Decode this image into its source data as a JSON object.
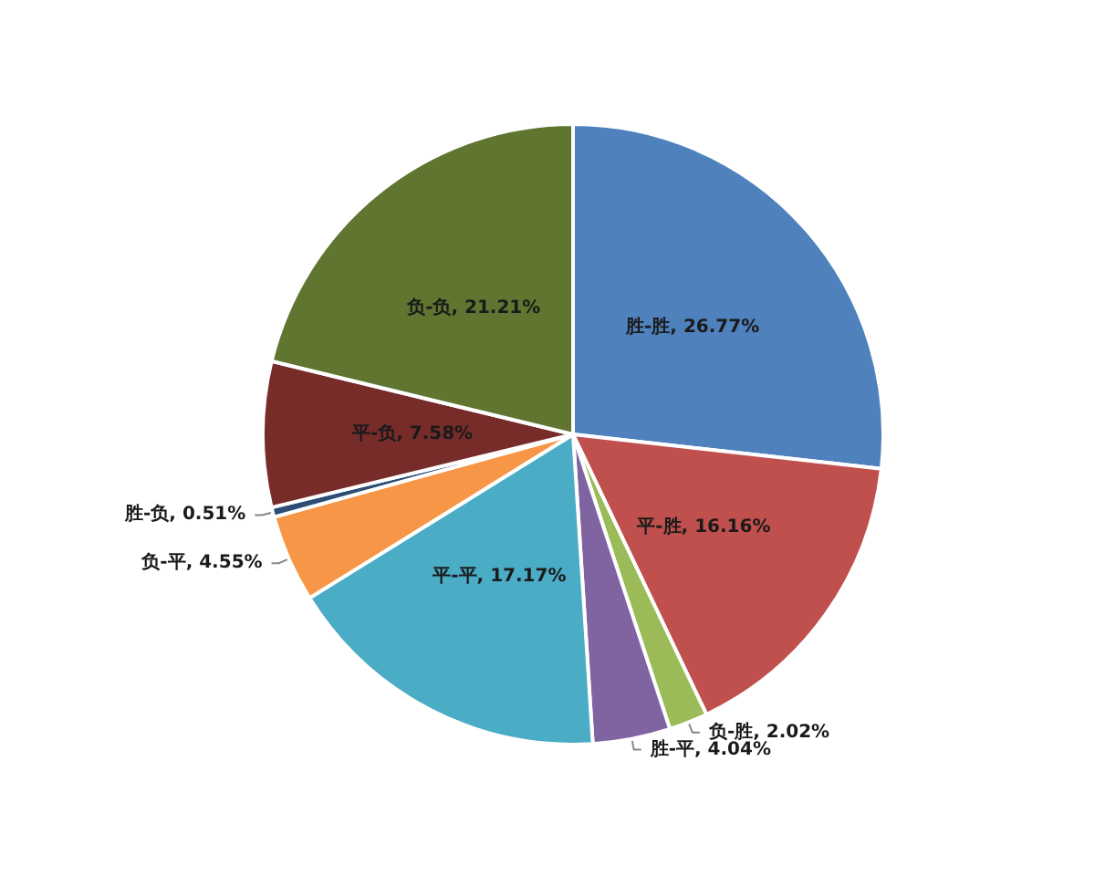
{
  "chart_data": {
    "type": "pie",
    "categories": [
      "胜-胜",
      "平-胜",
      "负-胜",
      "胜-平",
      "平-平",
      "负-平",
      "胜-负",
      "平-负",
      "负-负"
    ],
    "values": [
      26.77,
      16.16,
      2.02,
      4.04,
      17.17,
      4.55,
      0.51,
      7.58,
      21.21
    ],
    "colors": [
      "#4f81bd",
      "#c0504d",
      "#9bbb59",
      "#8064a2",
      "#4bacc6",
      "#f79646",
      "#2c4d75",
      "#772c2a",
      "#5f7530"
    ],
    "value_labels": [
      "26.77%",
      "16.16%",
      "2.02%",
      "4.04%",
      "17.17%",
      "4.55%",
      "0.51%",
      "7.58%",
      "21.21%"
    ]
  }
}
